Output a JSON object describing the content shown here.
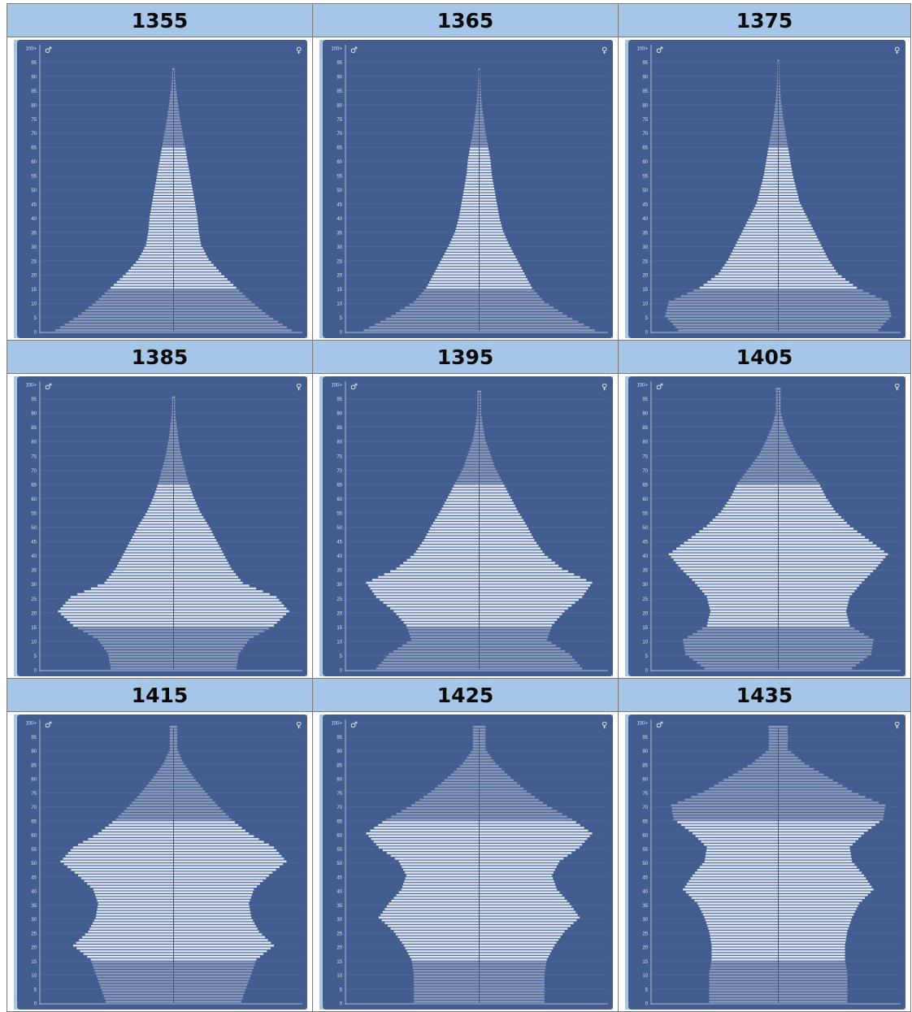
{
  "sex_labels": {
    "male": "♂",
    "female": "♀"
  },
  "age_ticks": [
    "100+",
    "95",
    "90",
    "85",
    "80",
    "75",
    "70",
    "65",
    "60",
    "55",
    "50",
    "45",
    "40",
    "35",
    "30",
    "25",
    "20",
    "15",
    "10",
    "5",
    "0"
  ],
  "colors": {
    "panel": "#435d90",
    "header": "#a6c6e8",
    "bar": "#dbe3ef",
    "bar_shaded": "#8797b8"
  },
  "chart_data": [
    {
      "type": "bar",
      "orientation": "population-pyramid",
      "title": "1355",
      "age_groups": [
        0,
        5,
        10,
        15,
        20,
        25,
        30,
        35,
        40,
        45,
        50,
        55,
        60,
        65,
        70,
        75,
        80,
        85,
        90
      ],
      "values": [
        0.94,
        0.76,
        0.62,
        0.5,
        0.38,
        0.28,
        0.22,
        0.2,
        0.19,
        0.17,
        0.15,
        0.13,
        0.11,
        0.09,
        0.07,
        0.05,
        0.035,
        0.02,
        0.01
      ],
      "max_age": 92
    },
    {
      "type": "bar",
      "orientation": "population-pyramid",
      "title": "1365",
      "age_groups": [
        0,
        5,
        10,
        15,
        20,
        25,
        30,
        35,
        40,
        45,
        50,
        55,
        60,
        65,
        70,
        75,
        80,
        85,
        90
      ],
      "values": [
        0.92,
        0.7,
        0.52,
        0.42,
        0.36,
        0.3,
        0.24,
        0.19,
        0.16,
        0.14,
        0.12,
        0.1,
        0.09,
        0.07,
        0.05,
        0.035,
        0.02,
        0.012,
        0.006
      ],
      "max_age": 92
    },
    {
      "type": "bar",
      "orientation": "population-pyramid",
      "title": "1375",
      "age_groups": [
        0,
        5,
        10,
        15,
        20,
        25,
        30,
        35,
        40,
        45,
        50,
        55,
        60,
        65,
        70,
        75,
        80,
        85,
        90
      ],
      "values": [
        0.84,
        0.95,
        0.92,
        0.66,
        0.5,
        0.42,
        0.36,
        0.3,
        0.24,
        0.18,
        0.15,
        0.12,
        0.1,
        0.08,
        0.06,
        0.04,
        0.025,
        0.015,
        0.008
      ],
      "max_age": 95
    },
    {
      "type": "bar",
      "orientation": "population-pyramid",
      "title": "1385",
      "age_groups": [
        0,
        5,
        10,
        15,
        20,
        25,
        30,
        35,
        40,
        45,
        50,
        55,
        60,
        65,
        70,
        75,
        80,
        85,
        90
      ],
      "values": [
        0.5,
        0.52,
        0.6,
        0.8,
        0.92,
        0.82,
        0.55,
        0.46,
        0.4,
        0.34,
        0.28,
        0.21,
        0.16,
        0.12,
        0.09,
        0.06,
        0.04,
        0.025,
        0.012
      ],
      "max_age": 95
    },
    {
      "type": "bar",
      "orientation": "population-pyramid",
      "title": "1395",
      "age_groups": [
        0,
        5,
        10,
        15,
        20,
        25,
        30,
        35,
        40,
        45,
        50,
        55,
        60,
        65,
        70,
        75,
        80,
        85,
        90
      ],
      "values": [
        0.82,
        0.72,
        0.54,
        0.58,
        0.68,
        0.82,
        0.9,
        0.66,
        0.52,
        0.44,
        0.38,
        0.31,
        0.25,
        0.19,
        0.13,
        0.09,
        0.05,
        0.03,
        0.015
      ],
      "max_age": 97
    },
    {
      "type": "bar",
      "orientation": "population-pyramid",
      "title": "1405",
      "age_groups": [
        0,
        5,
        10,
        15,
        20,
        25,
        30,
        35,
        40,
        45,
        50,
        55,
        60,
        65,
        70,
        75,
        80,
        85,
        90
      ],
      "values": [
        0.62,
        0.78,
        0.8,
        0.6,
        0.57,
        0.6,
        0.7,
        0.82,
        0.92,
        0.76,
        0.6,
        0.48,
        0.4,
        0.34,
        0.25,
        0.16,
        0.1,
        0.05,
        0.02
      ],
      "max_age": 98
    },
    {
      "type": "bar",
      "orientation": "population-pyramid",
      "title": "1415",
      "age_groups": [
        0,
        5,
        10,
        15,
        20,
        25,
        30,
        35,
        40,
        45,
        50,
        55,
        60,
        65,
        70,
        75,
        80,
        85,
        90
      ],
      "values": [
        0.54,
        0.58,
        0.62,
        0.66,
        0.8,
        0.68,
        0.62,
        0.6,
        0.64,
        0.76,
        0.9,
        0.8,
        0.6,
        0.46,
        0.35,
        0.25,
        0.16,
        0.08,
        0.03
      ],
      "max_age": 98
    },
    {
      "type": "bar",
      "orientation": "population-pyramid",
      "title": "1425",
      "age_groups": [
        0,
        5,
        10,
        15,
        20,
        25,
        30,
        35,
        40,
        45,
        50,
        55,
        60,
        65,
        70,
        75,
        80,
        85,
        90
      ],
      "values": [
        0.52,
        0.52,
        0.52,
        0.54,
        0.6,
        0.68,
        0.8,
        0.72,
        0.62,
        0.58,
        0.64,
        0.8,
        0.9,
        0.74,
        0.54,
        0.38,
        0.25,
        0.13,
        0.05
      ],
      "max_age": 98
    },
    {
      "type": "bar",
      "orientation": "population-pyramid",
      "title": "1435",
      "age_groups": [
        0,
        5,
        10,
        15,
        20,
        25,
        30,
        35,
        40,
        45,
        50,
        55,
        60,
        65,
        70,
        75,
        80,
        85,
        90
      ],
      "values": [
        0.58,
        0.58,
        0.58,
        0.56,
        0.56,
        0.58,
        0.62,
        0.68,
        0.8,
        0.72,
        0.62,
        0.6,
        0.72,
        0.88,
        0.9,
        0.62,
        0.42,
        0.22,
        0.08
      ],
      "max_age": 98
    }
  ]
}
